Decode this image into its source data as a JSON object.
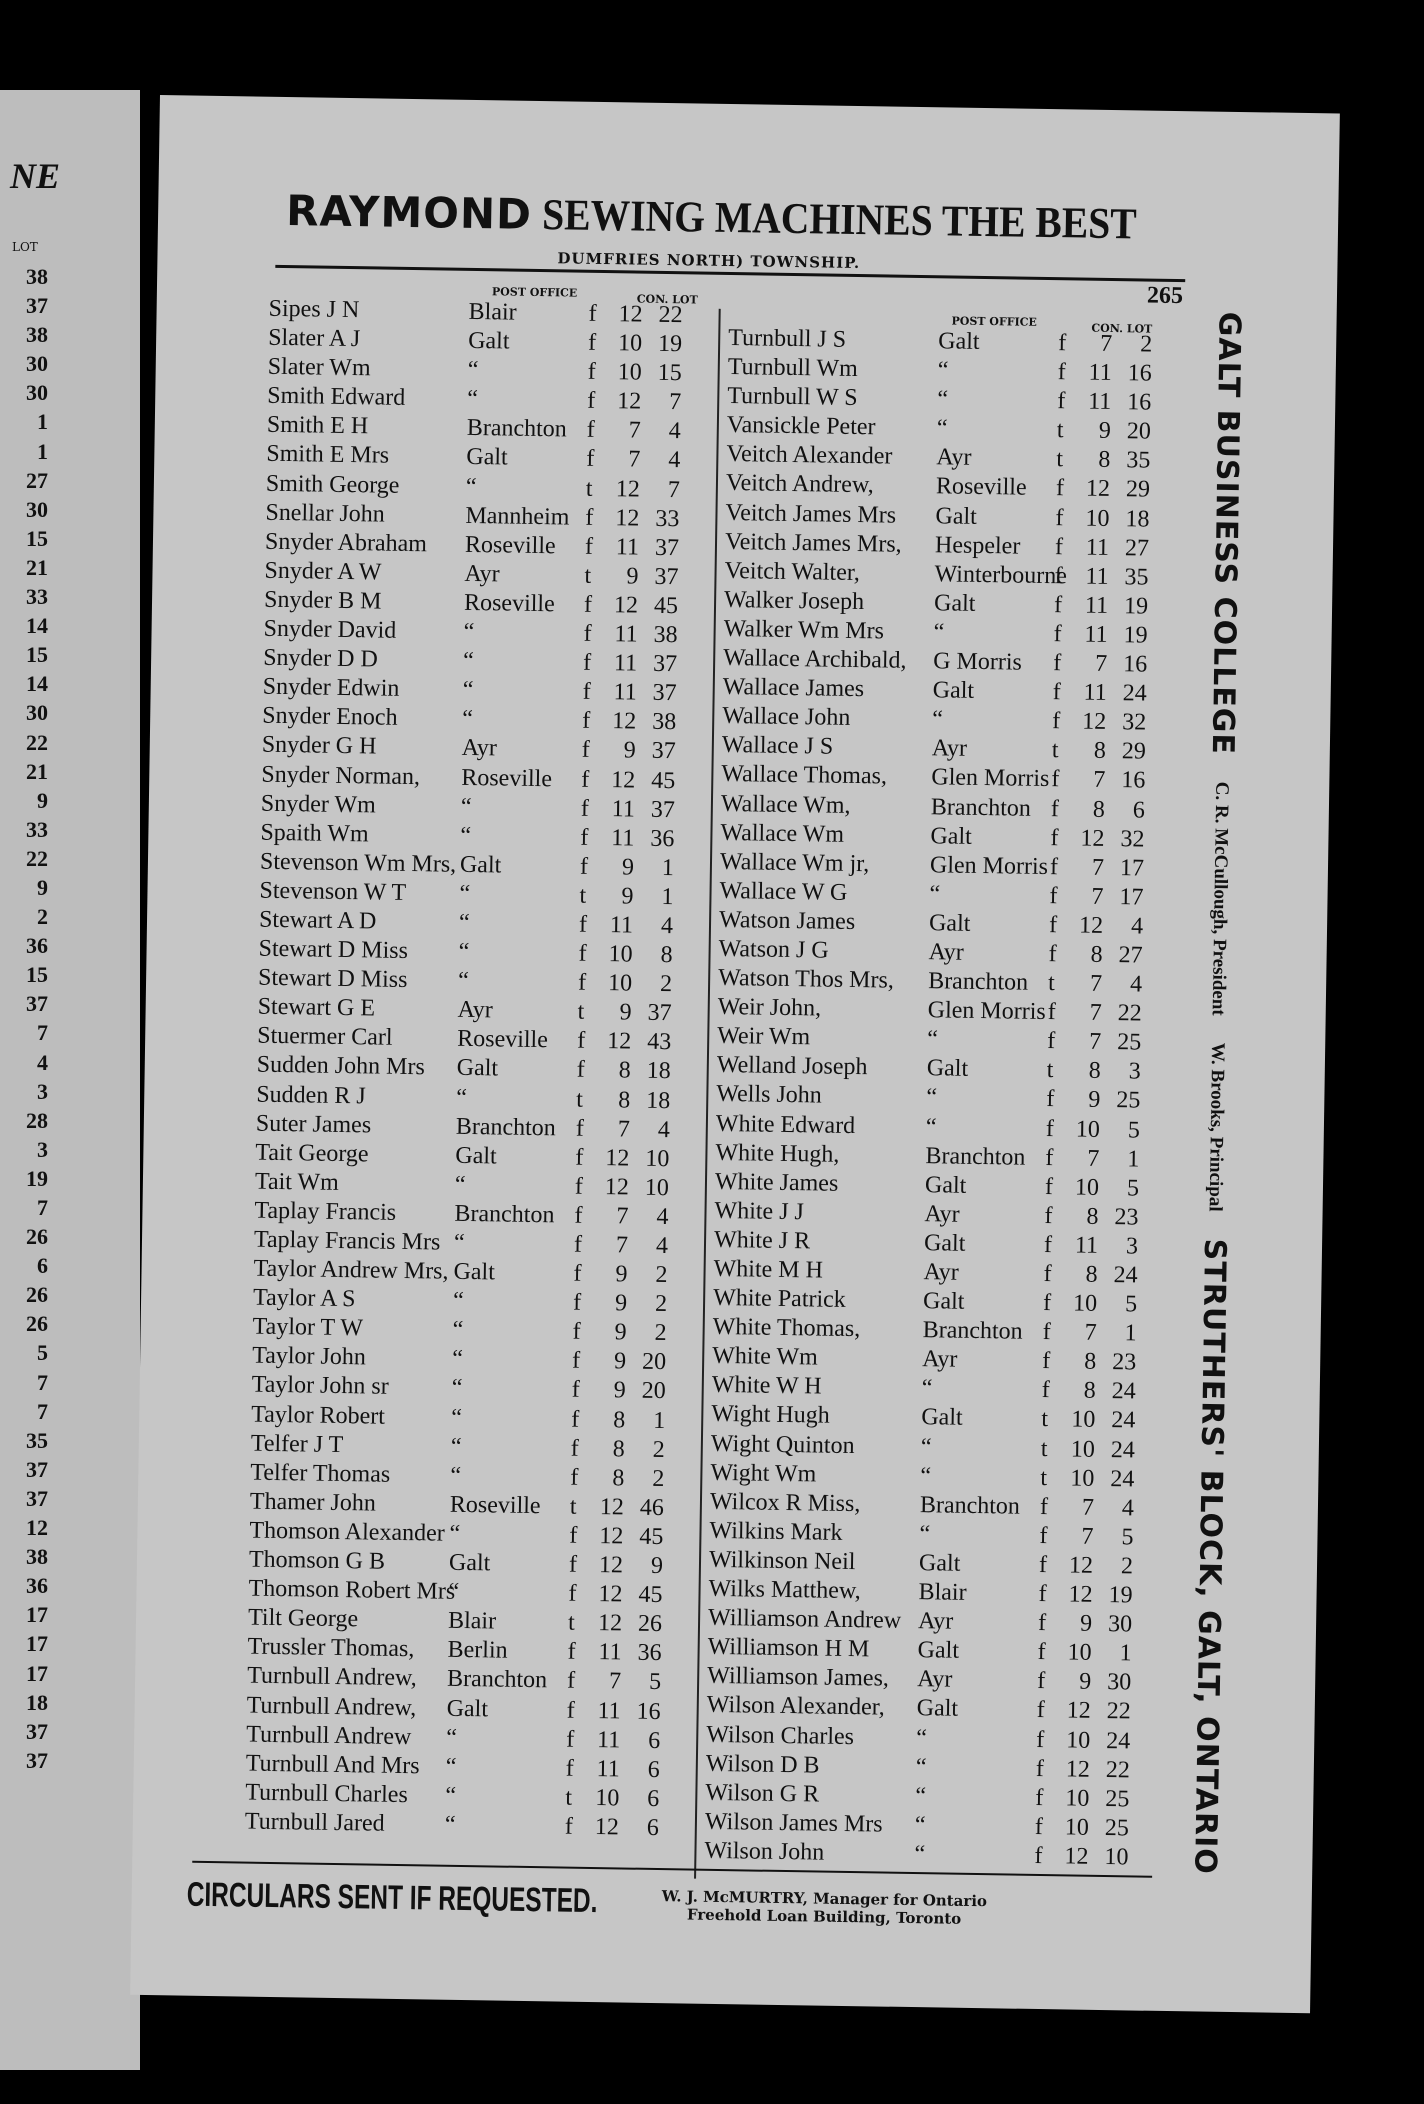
{
  "left_page": {
    "heading": "NE",
    "lot_label": "LOT",
    "lots": [
      "38",
      "37",
      "38",
      "30",
      "30",
      "1",
      "1",
      "27",
      "30",
      "15",
      "21",
      "33",
      "14",
      "15",
      "14",
      "30",
      "22",
      "21",
      "9",
      "33",
      "22",
      "9",
      "2",
      "36",
      "15",
      "37",
      "7",
      "4",
      "3",
      "28",
      "3",
      "19",
      "7",
      "26",
      "6",
      "26",
      "26",
      "5",
      "7",
      "7",
      "35",
      "37",
      "37",
      "12",
      "38",
      "36",
      "17",
      "17",
      "17",
      "18",
      "37",
      "37"
    ]
  },
  "header": {
    "brand": "RAYMOND",
    "slogan": "SEWING MACHINES THE BEST",
    "subtitle": "DUMFRIES NORTH) TOWNSHIP.",
    "page_number": "265"
  },
  "column_headers": {
    "post_office": "POST OFFICE",
    "con_lot": "CON. LOT"
  },
  "left_entries": [
    [
      "Sipes J N",
      "Blair",
      "f",
      "12",
      "22"
    ],
    [
      "Slater A J",
      "Galt",
      "f",
      "10",
      "19"
    ],
    [
      "Slater Wm",
      "“",
      "f",
      "10",
      "15"
    ],
    [
      "Smith Edward",
      "“",
      "f",
      "12",
      "7"
    ],
    [
      "Smith E H",
      "Branchton",
      "f",
      "7",
      "4"
    ],
    [
      "Smith E Mrs",
      "Galt",
      "f",
      "7",
      "4"
    ],
    [
      "Smith George",
      "“",
      "t",
      "12",
      "7"
    ],
    [
      "Snellar John",
      "Mannheim",
      "f",
      "12",
      "33"
    ],
    [
      "Snyder Abraham",
      "Roseville",
      "f",
      "11",
      "37"
    ],
    [
      "Snyder A W",
      "Ayr",
      "t",
      "9",
      "37"
    ],
    [
      "Snyder B M",
      "Roseville",
      "f",
      "12",
      "45"
    ],
    [
      "Snyder David",
      "“",
      "f",
      "11",
      "38"
    ],
    [
      "Snyder D D",
      "“",
      "f",
      "11",
      "37"
    ],
    [
      "Snyder Edwin",
      "“",
      "f",
      "11",
      "37"
    ],
    [
      "Snyder Enoch",
      "“",
      "f",
      "12",
      "38"
    ],
    [
      "Snyder G H",
      "Ayr",
      "f",
      "9",
      "37"
    ],
    [
      "Snyder Norman,",
      "Roseville",
      "f",
      "12",
      "45"
    ],
    [
      "Snyder Wm",
      "“",
      "f",
      "11",
      "37"
    ],
    [
      "Spaith Wm",
      "“",
      "f",
      "11",
      "36"
    ],
    [
      "Stevenson Wm Mrs,",
      "Galt",
      "f",
      "9",
      "1"
    ],
    [
      "Stevenson W T",
      "“",
      "t",
      "9",
      "1"
    ],
    [
      "Stewart A D",
      "“",
      "f",
      "11",
      "4"
    ],
    [
      "Stewart D Miss",
      "“",
      "f",
      "10",
      "8"
    ],
    [
      "Stewart D Miss",
      "“",
      "f",
      "10",
      "2"
    ],
    [
      "Stewart G E",
      "Ayr",
      "t",
      "9",
      "37"
    ],
    [
      "Stuermer Carl",
      "Roseville",
      "f",
      "12",
      "43"
    ],
    [
      "Sudden John Mrs",
      "Galt",
      "f",
      "8",
      "18"
    ],
    [
      "Sudden R J",
      "“",
      "t",
      "8",
      "18"
    ],
    [
      "Suter James",
      "Branchton",
      "f",
      "7",
      "4"
    ],
    [
      "Tait George",
      "Galt",
      "f",
      "12",
      "10"
    ],
    [
      "Tait Wm",
      "“",
      "f",
      "12",
      "10"
    ],
    [
      "Taplay Francis",
      "Branchton",
      "f",
      "7",
      "4"
    ],
    [
      "Taplay Francis Mrs",
      "“",
      "f",
      "7",
      "4"
    ],
    [
      "Taylor Andrew Mrs,",
      "Galt",
      "f",
      "9",
      "2"
    ],
    [
      "Taylor A S",
      "“",
      "f",
      "9",
      "2"
    ],
    [
      "Taylor T W",
      "“",
      "f",
      "9",
      "2"
    ],
    [
      "Taylor John",
      "“",
      "f",
      "9",
      "20"
    ],
    [
      "Taylor John sr",
      "“",
      "f",
      "9",
      "20"
    ],
    [
      "Taylor Robert",
      "“",
      "f",
      "8",
      "1"
    ],
    [
      "Telfer J T",
      "“",
      "f",
      "8",
      "2"
    ],
    [
      "Telfer Thomas",
      "“",
      "f",
      "8",
      "2"
    ],
    [
      "Thamer John",
      "Roseville",
      "t",
      "12",
      "46"
    ],
    [
      "Thomson Alexander",
      "“",
      "f",
      "12",
      "45"
    ],
    [
      "Thomson G B",
      "Galt",
      "f",
      "12",
      "9"
    ],
    [
      "Thomson Robert Mrs",
      "“",
      "f",
      "12",
      "45"
    ],
    [
      "Tilt George",
      "Blair",
      "t",
      "12",
      "26"
    ],
    [
      "Trussler Thomas,",
      "Berlin",
      "f",
      "11",
      "36"
    ],
    [
      "Turnbull Andrew,",
      "Branchton",
      "f",
      "7",
      "5"
    ],
    [
      "Turnbull Andrew,",
      "Galt",
      "f",
      "11",
      "16"
    ],
    [
      "Turnbull Andrew",
      "“",
      "f",
      "11",
      "6"
    ],
    [
      "Turnbull And Mrs",
      "“",
      "f",
      "11",
      "6"
    ],
    [
      "Turnbull Charles",
      "“",
      "t",
      "10",
      "6"
    ],
    [
      "Turnbull Jared",
      "“",
      "f",
      "12",
      "6"
    ]
  ],
  "right_entries": [
    [
      "Turnbull J S",
      "Galt",
      "f",
      "7",
      "2"
    ],
    [
      "Turnbull Wm",
      "“",
      "f",
      "11",
      "16"
    ],
    [
      "Turnbull W S",
      "“",
      "f",
      "11",
      "16"
    ],
    [
      "Vansickle Peter",
      "“",
      "t",
      "9",
      "20"
    ],
    [
      "Veitch Alexander",
      "Ayr",
      "t",
      "8",
      "35"
    ],
    [
      "Veitch Andrew,",
      "Roseville",
      "f",
      "12",
      "29"
    ],
    [
      "Veitch James Mrs",
      "Galt",
      "f",
      "10",
      "18"
    ],
    [
      "Veitch James Mrs,",
      "Hespeler",
      "f",
      "11",
      "27"
    ],
    [
      "Veitch Walter,",
      "Winterbourne",
      "f",
      "11",
      "35"
    ],
    [
      "Walker Joseph",
      "Galt",
      "f",
      "11",
      "19"
    ],
    [
      "Walker Wm Mrs",
      "“",
      "f",
      "11",
      "19"
    ],
    [
      "Wallace Archibald,",
      "G Morris",
      "f",
      "7",
      "16"
    ],
    [
      "Wallace James",
      "Galt",
      "f",
      "11",
      "24"
    ],
    [
      "Wallace John",
      "“",
      "f",
      "12",
      "32"
    ],
    [
      "Wallace J S",
      "Ayr",
      "t",
      "8",
      "29"
    ],
    [
      "Wallace Thomas,",
      "Glen Morris",
      "f",
      "7",
      "16"
    ],
    [
      "Wallace Wm,",
      "Branchton",
      "f",
      "8",
      "6"
    ],
    [
      "Wallace Wm",
      "Galt",
      "f",
      "12",
      "32"
    ],
    [
      "Wallace Wm jr,",
      "Glen Morris",
      "f",
      "7",
      "17"
    ],
    [
      "Wallace W G",
      "“",
      "f",
      "7",
      "17"
    ],
    [
      "Watson James",
      "Galt",
      "f",
      "12",
      "4"
    ],
    [
      "Watson J G",
      "Ayr",
      "f",
      "8",
      "27"
    ],
    [
      "Watson Thos Mrs,",
      "Branchton",
      "t",
      "7",
      "4"
    ],
    [
      "Weir John,",
      "Glen Morris",
      "f",
      "7",
      "22"
    ],
    [
      "Weir Wm",
      "“",
      "f",
      "7",
      "25"
    ],
    [
      "Welland Joseph",
      "Galt",
      "t",
      "8",
      "3"
    ],
    [
      "Wells John",
      "“",
      "f",
      "9",
      "25"
    ],
    [
      "White Edward",
      "“",
      "f",
      "10",
      "5"
    ],
    [
      "White Hugh,",
      "Branchton",
      "f",
      "7",
      "1"
    ],
    [
      "White James",
      "Galt",
      "f",
      "10",
      "5"
    ],
    [
      "White J J",
      "Ayr",
      "f",
      "8",
      "23"
    ],
    [
      "White J R",
      "Galt",
      "f",
      "11",
      "3"
    ],
    [
      "White M H",
      "Ayr",
      "f",
      "8",
      "24"
    ],
    [
      "White Patrick",
      "Galt",
      "f",
      "10",
      "5"
    ],
    [
      "White Thomas,",
      "Branchton",
      "f",
      "7",
      "1"
    ],
    [
      "White Wm",
      "Ayr",
      "f",
      "8",
      "23"
    ],
    [
      "White W H",
      "“",
      "f",
      "8",
      "24"
    ],
    [
      "Wight Hugh",
      "Galt",
      "t",
      "10",
      "24"
    ],
    [
      "Wight Quinton",
      "“",
      "t",
      "10",
      "24"
    ],
    [
      "Wight Wm",
      "“",
      "t",
      "10",
      "24"
    ],
    [
      "Wilcox R Miss,",
      "Branchton",
      "f",
      "7",
      "4"
    ],
    [
      "Wilkins Mark",
      "“",
      "f",
      "7",
      "5"
    ],
    [
      "Wilkinson Neil",
      "Galt",
      "f",
      "12",
      "2"
    ],
    [
      "Wilks Matthew,",
      "Blair",
      "f",
      "12",
      "19"
    ],
    [
      "Williamson Andrew",
      "Ayr",
      "f",
      "9",
      "30"
    ],
    [
      "Williamson H M",
      "Galt",
      "f",
      "10",
      "1"
    ],
    [
      "Williamson James,",
      "Ayr",
      "f",
      "9",
      "30"
    ],
    [
      "Wilson Alexander,",
      "Galt",
      "f",
      "12",
      "22"
    ],
    [
      "Wilson Charles",
      "“",
      "f",
      "10",
      "24"
    ],
    [
      "Wilson D B",
      "“",
      "f",
      "12",
      "22"
    ],
    [
      "Wilson G R",
      "“",
      "f",
      "10",
      "25"
    ],
    [
      "Wilson James Mrs",
      "“",
      "f",
      "10",
      "25"
    ],
    [
      "Wilson John",
      "“",
      "f",
      "12",
      "10"
    ]
  ],
  "side_ad": {
    "college": "GALT BUSINESS COLLEGE",
    "president": "C. R. McCullough, President",
    "principal": "W. Brooks, Principal",
    "address": "STRUTHERS' BLOCK, GALT, ONTARIO"
  },
  "footer": {
    "circulars": "CIRCULARS SENT IF REQUESTED.",
    "manager_line1": "W. J. McMURTRY, Manager for Ontario",
    "manager_line2": "Freehold Loan Building, Toronto"
  }
}
